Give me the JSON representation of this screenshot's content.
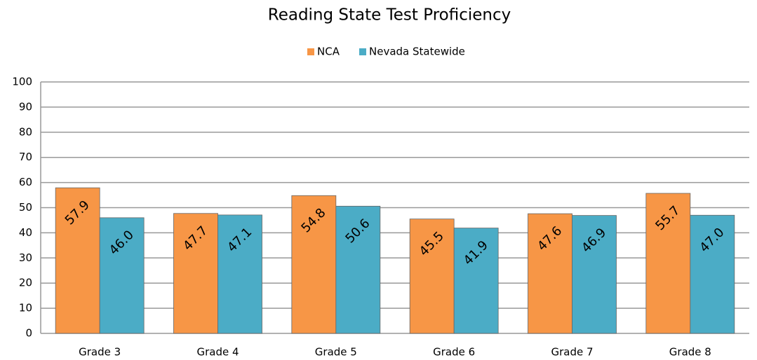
{
  "chart_data": {
    "type": "bar",
    "title": "Reading State Test Proficiency",
    "categories": [
      "Grade 3",
      "Grade 4",
      "Grade 5",
      "Grade 6",
      "Grade 7",
      "Grade 8"
    ],
    "series": [
      {
        "name": "NCA",
        "color": "#f79646",
        "values": [
          57.9,
          47.7,
          54.8,
          45.5,
          47.6,
          55.7
        ],
        "value_labels": [
          "57.9",
          "47.7",
          "54.8",
          "45.5",
          "47.6",
          "55.7"
        ]
      },
      {
        "name": "Nevada Statewide",
        "color": "#4bacc6",
        "values": [
          46.0,
          47.1,
          50.6,
          41.9,
          46.9,
          47.0
        ],
        "value_labels": [
          "46.0",
          "47.1",
          "50.6",
          "41.9",
          "46.9",
          "47.0"
        ]
      }
    ],
    "ylim": [
      0,
      100
    ],
    "yticks": [
      0,
      10,
      20,
      30,
      40,
      50,
      60,
      70,
      80,
      90,
      100
    ],
    "grid": true,
    "legend": "top"
  }
}
